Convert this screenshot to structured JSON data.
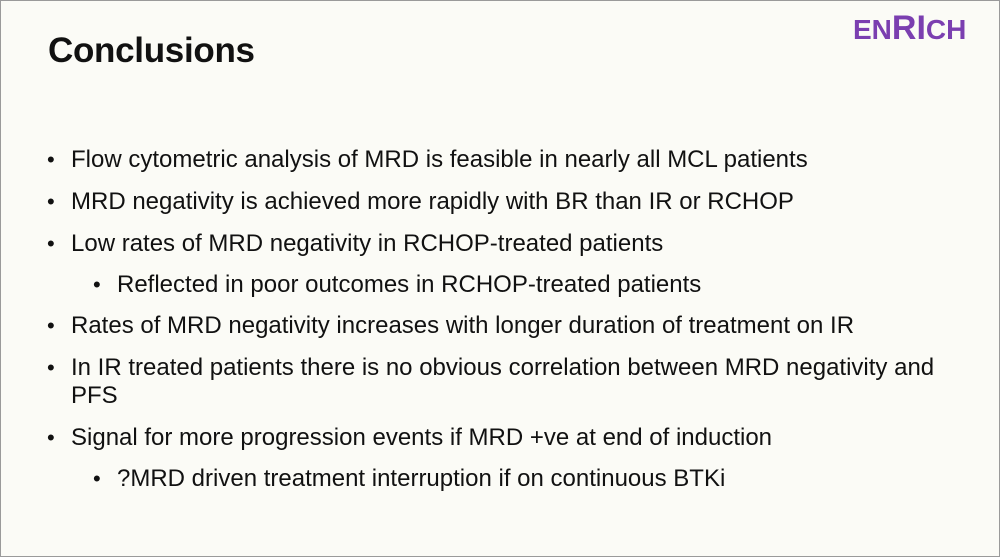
{
  "slide": {
    "title": "Conclusions",
    "logo": {
      "part1": "EN",
      "part2": "RI",
      "part3": "CH",
      "color": "#7b3fb0"
    },
    "bullets": [
      {
        "level": 1,
        "text": "Flow cytometric analysis of MRD is feasible in nearly all MCL patients"
      },
      {
        "level": 1,
        "text": "MRD negativity is achieved more rapidly with BR than IR or RCHOP"
      },
      {
        "level": 1,
        "text": "Low rates of MRD negativity in RCHOP-treated patients"
      },
      {
        "level": 2,
        "text": "Reflected in poor outcomes in RCHOP-treated patients"
      },
      {
        "level": 1,
        "text": "Rates of MRD negativity increases with longer duration of treatment on IR"
      },
      {
        "level": 1,
        "text": "In IR treated patients there is no obvious correlation between MRD negativity and PFS"
      },
      {
        "level": 1,
        "text": "Signal for more progression events if MRD +ve at end of induction"
      },
      {
        "level": 2,
        "text": "?MRD driven treatment interruption if on continuous BTKi"
      }
    ],
    "bullet_glyph": "•"
  }
}
